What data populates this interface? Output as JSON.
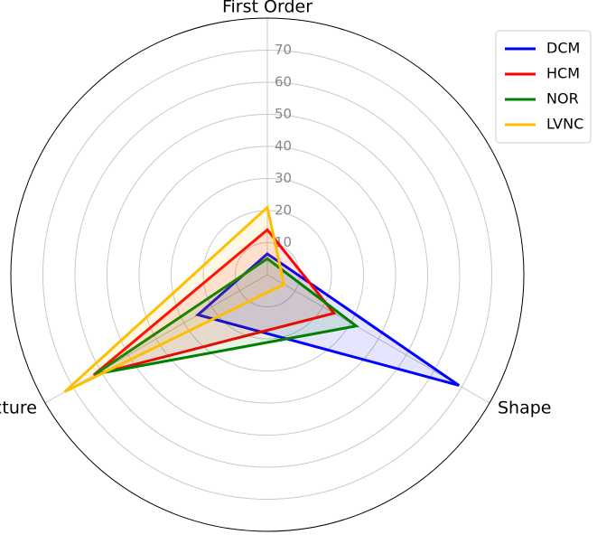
{
  "chart_data": {
    "type": "radar",
    "categories": [
      "First Order",
      "Shape",
      "Texture"
    ],
    "series": [
      {
        "name": "DCM",
        "color": "#0000ff",
        "values": [
          6.5,
          69,
          25
        ]
      },
      {
        "name": "HCM",
        "color": "#ff0000",
        "values": [
          14,
          24,
          62.5
        ]
      },
      {
        "name": "NOR",
        "color": "#008000",
        "values": [
          5,
          32,
          62
        ]
      },
      {
        "name": "LVNC",
        "color": "#ffbf00",
        "values": [
          21,
          6,
          73
        ]
      }
    ],
    "ylim": [
      0,
      80
    ],
    "yticks": [
      10,
      20,
      30,
      40,
      50,
      60,
      70
    ],
    "grid": true,
    "legend": "upper right"
  }
}
